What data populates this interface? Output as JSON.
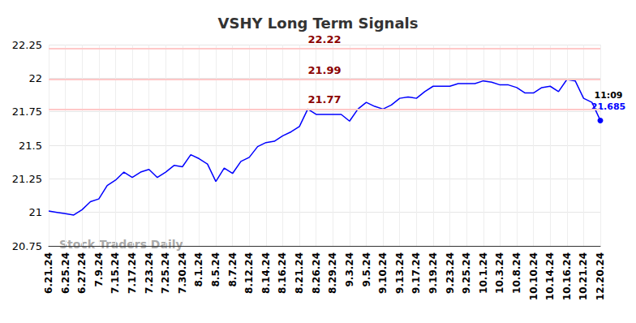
{
  "chart_data": {
    "type": "line",
    "title": "VSHY Long Term Signals",
    "categories": [
      "6.21.24",
      null,
      "6.25.24",
      null,
      "6.27.24",
      null,
      "7.9.24",
      null,
      "7.15.24",
      null,
      "7.17.24",
      null,
      "7.23.24",
      null,
      "7.25.24",
      null,
      "7.30.24",
      null,
      "8.1.24",
      null,
      "8.5.24",
      null,
      "8.7.24",
      null,
      "8.12.24",
      null,
      "8.14.24",
      null,
      "8.16.24",
      null,
      "8.21.24",
      null,
      "8.26.24",
      null,
      "8.29.24",
      null,
      "9.3.24",
      null,
      "9.5.24",
      null,
      "9.10.24",
      null,
      "9.13.24",
      null,
      "9.17.24",
      null,
      "9.19.24",
      null,
      "9.23.24",
      null,
      "9.25.24",
      null,
      "10.1.24",
      null,
      "10.3.24",
      null,
      "10.8.24",
      null,
      "10.10.24",
      null,
      "10.14.24",
      null,
      "10.16.24",
      null,
      "10.21.24",
      null,
      "12.20.24"
    ],
    "values": [
      21.01,
      21.0,
      20.99,
      20.98,
      21.02,
      21.08,
      21.1,
      21.2,
      21.24,
      21.3,
      21.26,
      21.3,
      21.32,
      21.26,
      21.3,
      21.35,
      21.34,
      21.43,
      21.4,
      21.36,
      21.23,
      21.33,
      21.29,
      21.38,
      21.41,
      21.49,
      21.52,
      21.53,
      21.57,
      21.6,
      21.64,
      21.77,
      21.73,
      21.73,
      21.73,
      21.73,
      21.68,
      21.77,
      21.82,
      21.79,
      21.77,
      21.8,
      21.85,
      21.86,
      21.85,
      21.9,
      21.94,
      21.94,
      21.94,
      21.96,
      21.96,
      21.96,
      21.98,
      21.97,
      21.95,
      21.95,
      21.93,
      21.89,
      21.89,
      21.93,
      21.94,
      21.9,
      21.99,
      21.98,
      21.85,
      21.82,
      21.685
    ],
    "color": "#0000ff",
    "signal_levels": [
      22.22,
      21.99,
      21.77
    ],
    "last_point_time": "11:09",
    "watermark": "Stock Traders Daily",
    "ylim": [
      20.75,
      22.25
    ],
    "yticks": [
      20.75,
      21,
      21.25,
      21.5,
      21.75,
      22,
      22.25
    ],
    "grid": true
  }
}
